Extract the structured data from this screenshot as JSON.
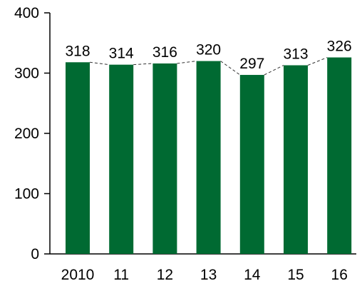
{
  "chart_data": {
    "type": "bar",
    "categories": [
      "2010",
      "11",
      "12",
      "13",
      "14",
      "15",
      "16"
    ],
    "values": [
      318,
      314,
      316,
      320,
      297,
      313,
      326
    ],
    "data_labels": [
      "318",
      "314",
      "316",
      "320",
      "297",
      "313",
      "326"
    ],
    "yticks": [
      0,
      100,
      200,
      300,
      400
    ],
    "ytick_labels": [
      "0",
      "100",
      "200",
      "300",
      "400"
    ],
    "ylim": [
      0,
      400
    ],
    "title": "",
    "xlabel": "",
    "ylabel": "",
    "grid": false,
    "bar_color": "#006a32",
    "connector_lines": "dashed"
  }
}
